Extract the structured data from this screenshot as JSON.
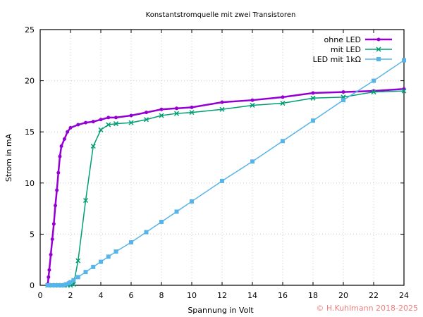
{
  "chart_data": {
    "type": "line",
    "title": "Konstantstromquelle mit zwei Transistoren",
    "xlabel": "Spannung in Volt",
    "ylabel": "Strom in mA",
    "xlim": [
      0,
      24
    ],
    "ylim": [
      0,
      25
    ],
    "xticks": [
      0,
      2,
      4,
      6,
      8,
      10,
      12,
      14,
      16,
      18,
      20,
      22,
      24
    ],
    "yticks": [
      0,
      5,
      10,
      15,
      20,
      25
    ],
    "grid": true,
    "legend_position": "top-right",
    "series": [
      {
        "name": "ohne LED",
        "color": "#9400d3",
        "marker": "circle",
        "width": 2.5,
        "x": [
          0.5,
          0.55,
          0.6,
          0.7,
          0.8,
          0.9,
          1.0,
          1.1,
          1.2,
          1.3,
          1.4,
          1.6,
          1.8,
          2.0,
          2.5,
          3.0,
          3.5,
          4.0,
          4.5,
          5.0,
          6.0,
          7.0,
          8.0,
          9.0,
          10.0,
          12.0,
          14.0,
          16.0,
          18.0,
          20.0,
          22.0,
          24.0
        ],
        "y": [
          0.1,
          0.8,
          1.5,
          3.0,
          4.5,
          6.0,
          7.8,
          9.3,
          11.0,
          12.6,
          13.6,
          14.3,
          15.0,
          15.4,
          15.7,
          15.9,
          16.0,
          16.2,
          16.4,
          16.4,
          16.6,
          16.9,
          17.2,
          17.3,
          17.4,
          17.9,
          18.1,
          18.4,
          18.8,
          18.9,
          19.0,
          19.2
        ]
      },
      {
        "name": "mit LED",
        "color": "#009e73",
        "marker": "x",
        "width": 1.5,
        "x": [
          0.5,
          0.8,
          1.0,
          1.2,
          1.4,
          1.6,
          1.8,
          2.0,
          2.2,
          2.5,
          3.0,
          3.5,
          4.0,
          4.5,
          5.0,
          6.0,
          7.0,
          8.0,
          9.0,
          10.0,
          12.0,
          14.0,
          16.0,
          18.0,
          20.0,
          22.0,
          24.0
        ],
        "y": [
          0,
          0,
          0,
          0,
          0,
          0,
          0,
          0,
          0.1,
          2.4,
          8.3,
          13.6,
          15.2,
          15.7,
          15.8,
          15.9,
          16.2,
          16.6,
          16.8,
          16.9,
          17.2,
          17.6,
          17.8,
          18.3,
          18.4,
          18.9,
          19.0
        ]
      },
      {
        "name": "LED mit 1kΩ",
        "color": "#56b4e9",
        "marker": "square",
        "width": 1.5,
        "x": [
          0.5,
          0.7,
          0.9,
          1.1,
          1.3,
          1.5,
          1.7,
          1.9,
          2.0,
          2.2,
          2.5,
          3.0,
          3.5,
          4.0,
          4.5,
          5.0,
          6.0,
          7.0,
          8.0,
          9.0,
          10.0,
          12.0,
          14.0,
          16.0,
          18.0,
          20.0,
          22.0,
          24.0
        ],
        "y": [
          0,
          0,
          0,
          0,
          0,
          0,
          0.1,
          0.2,
          0.3,
          0.5,
          0.8,
          1.3,
          1.8,
          2.3,
          2.8,
          3.3,
          4.2,
          5.2,
          6.2,
          7.2,
          8.2,
          10.2,
          12.1,
          14.1,
          16.1,
          18.1,
          20.0,
          22.0
        ]
      }
    ]
  },
  "copyright": "© H.Kuhlmann 2018-2025"
}
